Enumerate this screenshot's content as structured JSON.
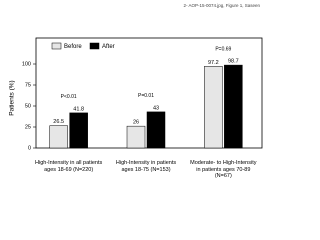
{
  "chart_data": {
    "type": "bar",
    "source": "2- AOP-15-0074.jpg, Figure 1, Saseen",
    "y_label": "Patients (%)",
    "categories": [
      "High-Intensity in all patients ages 18-69 (N=220)",
      "High-Intensity in patients ages 18-75 (N=153)",
      "Moderate- to High-Intensity in patients ages 70-89 (N=67)"
    ],
    "series": [
      {
        "name": "Before",
        "color": "#e6e6e6",
        "values": [
          26.5,
          26.0,
          97.2
        ]
      },
      {
        "name": "After",
        "color": "#000000",
        "values": [
          41.8,
          43.0,
          98.7
        ]
      }
    ],
    "annotations": [
      "P<0.01",
      "P=0.01",
      "P=0.69"
    ],
    "ylim": [
      0,
      100
    ],
    "yticks": [
      0,
      25,
      50,
      75,
      100
    ]
  }
}
